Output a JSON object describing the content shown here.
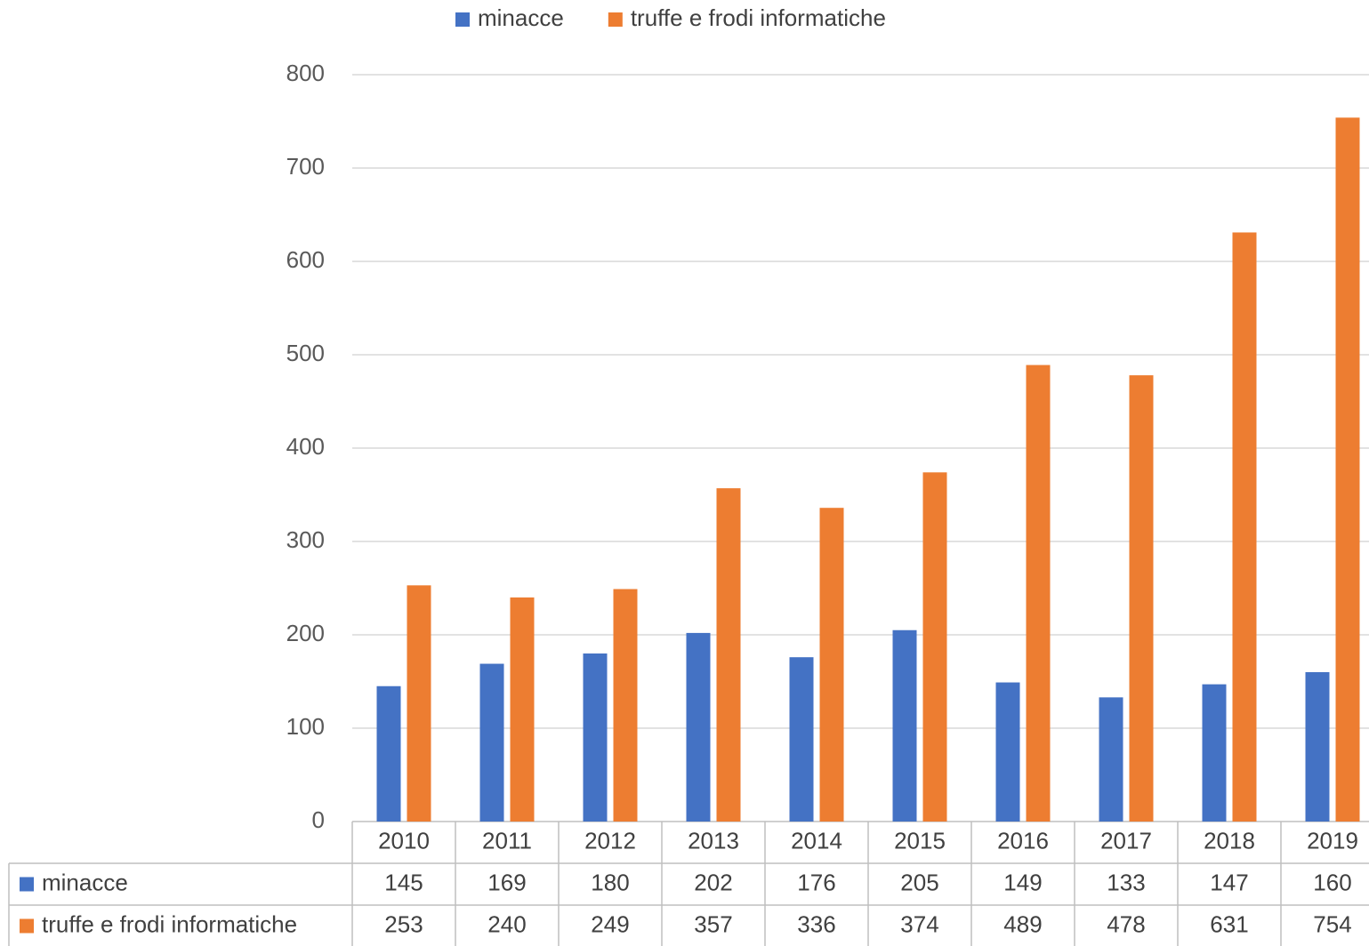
{
  "chart_data": {
    "type": "bar",
    "categories": [
      "2010",
      "2011",
      "2012",
      "2013",
      "2014",
      "2015",
      "2016",
      "2017",
      "2018",
      "2019"
    ],
    "series": [
      {
        "name": "minacce",
        "color": "#4472c4",
        "values": [
          145,
          169,
          180,
          202,
          176,
          205,
          149,
          133,
          147,
          160
        ]
      },
      {
        "name": "truffe e frodi informatiche",
        "color": "#ed7d31",
        "values": [
          253,
          240,
          249,
          357,
          336,
          374,
          489,
          478,
          631,
          754
        ]
      }
    ],
    "ylim": [
      0,
      800
    ],
    "yticks": [
      0,
      100,
      200,
      300,
      400,
      500,
      600,
      700,
      800
    ],
    "grid": true,
    "legend": "top",
    "data_table": true
  }
}
